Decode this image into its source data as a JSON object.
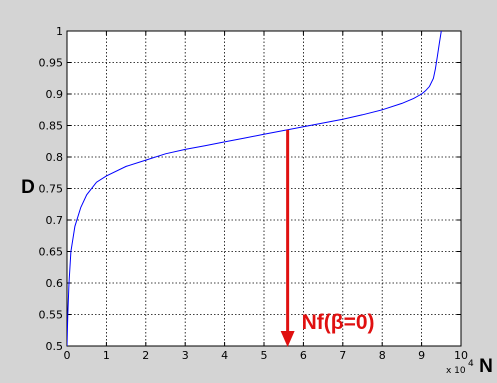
{
  "chart_data": {
    "type": "line",
    "title": "",
    "xlabel": "N",
    "ylabel": "D",
    "x_multiplier_label": "x 10",
    "x_multiplier_exponent": "4",
    "xlim": [
      0,
      10
    ],
    "ylim": [
      0.5,
      1
    ],
    "xticks": [
      "0",
      "1",
      "2",
      "3",
      "4",
      "5",
      "6",
      "7",
      "8",
      "9",
      "10"
    ],
    "yticks": [
      "0.5",
      "0.55",
      "0.6",
      "0.65",
      "0.7",
      "0.75",
      "0.8",
      "0.85",
      "0.9",
      "0.95",
      "1"
    ],
    "grid": true,
    "series": [
      {
        "color": "#0000ff",
        "x": [
          0.0,
          0.02,
          0.05,
          0.1,
          0.2,
          0.35,
          0.5,
          0.75,
          1.0,
          1.5,
          2.0,
          2.5,
          3.0,
          3.5,
          4.0,
          4.5,
          5.0,
          5.5,
          6.0,
          6.5,
          7.0,
          7.5,
          8.0,
          8.5,
          8.8,
          9.0,
          9.1,
          9.2,
          9.3,
          9.35,
          9.4,
          9.45,
          9.5,
          9.52,
          9.55
        ],
        "y": [
          0.5,
          0.55,
          0.6,
          0.65,
          0.69,
          0.72,
          0.74,
          0.76,
          0.77,
          0.785,
          0.795,
          0.805,
          0.812,
          0.818,
          0.824,
          0.83,
          0.836,
          0.842,
          0.848,
          0.854,
          0.86,
          0.867,
          0.875,
          0.885,
          0.893,
          0.9,
          0.905,
          0.912,
          0.925,
          0.94,
          0.96,
          0.98,
          1.0,
          1.02,
          1.04
        ]
      }
    ],
    "annotation": {
      "text": "Nf(β=0)",
      "color": "#e01010",
      "arrow_x": 5.6,
      "arrow_y_start": 0.843,
      "arrow_y_end": 0.5
    }
  }
}
